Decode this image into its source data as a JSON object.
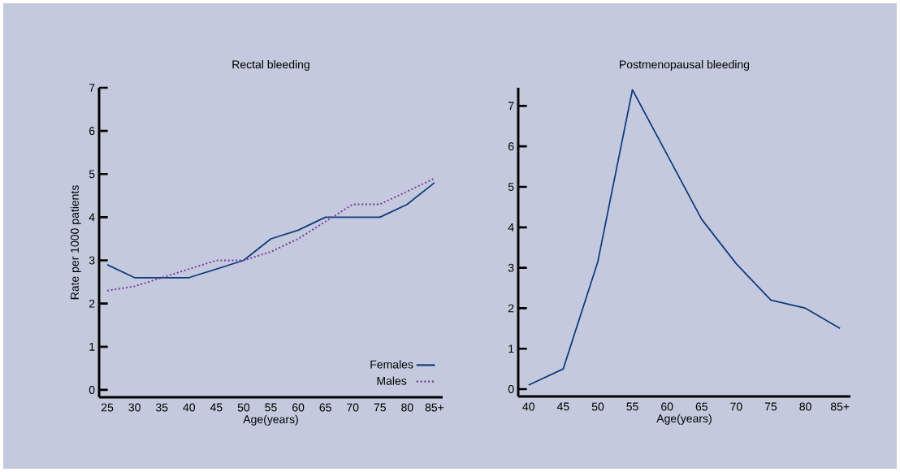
{
  "chart_data": [
    {
      "type": "line",
      "title": "Rectal bleeding",
      "xlabel": "Age(years)",
      "ylabel": "Rate per 1000 patients",
      "categories": [
        "25",
        "30",
        "35",
        "40",
        "45",
        "50",
        "55",
        "60",
        "65",
        "70",
        "75",
        "80",
        "85+"
      ],
      "series": [
        {
          "name": "Females",
          "color": "#0d3b7c",
          "line_style": "solid",
          "values": [
            2.9,
            2.6,
            2.6,
            2.6,
            2.8,
            3.0,
            3.5,
            3.7,
            4.0,
            4.0,
            4.0,
            4.3,
            4.8
          ]
        },
        {
          "name": "Males",
          "color": "#7a3aa0",
          "line_style": "dotted",
          "values": [
            2.3,
            2.4,
            2.6,
            2.8,
            3.0,
            3.0,
            3.2,
            3.5,
            3.9,
            4.3,
            4.3,
            4.6,
            4.9
          ]
        }
      ],
      "ylim": [
        -0.17,
        7
      ],
      "yticks": [
        0,
        1,
        2,
        3,
        4,
        5,
        6,
        7
      ],
      "legend": "bottom right",
      "marker": "none"
    },
    {
      "type": "line",
      "title": "Postmenopausal bleeding",
      "xlabel": "Age(years)",
      "categories": [
        "40",
        "45",
        "50",
        "55",
        "60",
        "65",
        "70",
        "75",
        "80",
        "85+"
      ],
      "series": [
        {
          "color": "#0d3b7c",
          "line_style": "solid",
          "values": [
            0.1,
            0.5,
            3.15,
            7.4,
            5.8,
            4.2,
            3.1,
            2.2,
            2.0,
            1.5
          ]
        }
      ],
      "ylim": [
        -0.18,
        7.45
      ],
      "yticks": [
        0,
        1,
        2,
        3,
        4,
        5,
        6,
        7
      ],
      "marker": "none"
    }
  ]
}
